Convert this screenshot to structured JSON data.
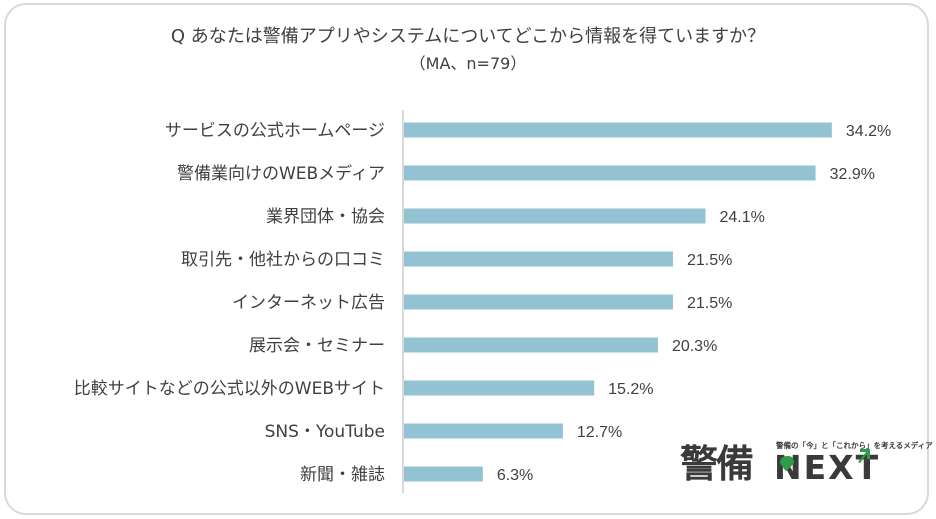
{
  "chart_data": {
    "type": "bar",
    "orientation": "horizontal",
    "title": "Q あなたは警備アプリやシステムについてどこから情報を得ていますか？",
    "subtitle": "（MA、n=79）",
    "categories": [
      "サービスの公式ホームページ",
      "警備業向けのWEBメディア",
      "業界団体・協会",
      "取引先・他社からの口コミ",
      "インターネット広告",
      "展示会・セミナー",
      "比較サイトなどの公式以外のWEBサイト",
      "SNS・YouTube",
      "新聞・雑誌"
    ],
    "values": [
      34.2,
      32.9,
      24.1,
      21.5,
      21.5,
      20.3,
      15.2,
      12.7,
      6.3
    ],
    "value_labels": [
      "34.2%",
      "32.9%",
      "24.1%",
      "21.5%",
      "21.5%",
      "20.3%",
      "15.2%",
      "12.7%",
      "6.3%"
    ],
    "unit": "%",
    "xlim": [
      0,
      42
    ],
    "grid": false,
    "legend": "none",
    "bar_color": "#93c3d3"
  },
  "logo": {
    "kanji": "警備",
    "tagline": "警備の「今」と「これから」を考えるメディア",
    "wordmark": "NEXT",
    "accent_color": "#2e9b48"
  }
}
